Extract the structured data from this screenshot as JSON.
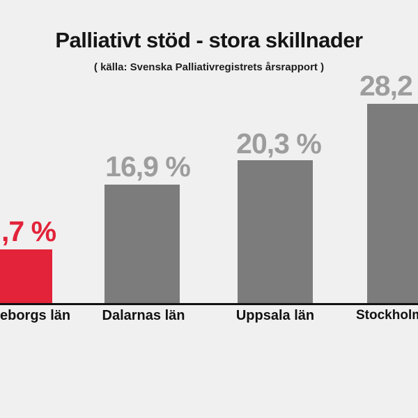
{
  "title": "Palliativt stöd - stora skillnader",
  "subtitle": "( källa: Svenska Palliativregistrets årsrapport )",
  "colors": {
    "background": "#f0f0f0",
    "bar_gray": "#7c7c7c",
    "bar_red": "#e22339",
    "value_label_gray": "#9d9d9d",
    "category_label": "#111111",
    "baseline": "#111111"
  },
  "chart_data": {
    "type": "bar",
    "title": "Palliativt stöd - stora skillnader",
    "subtitle": "( källa: Svenska Palliativregistrets årsrapport )",
    "categories": [
      "eborgs län",
      "Dalarnas län",
      "Uppsala län",
      "Stockholm"
    ],
    "values": [
      7.7,
      16.9,
      20.3,
      28.2
    ],
    "value_labels": [
      ",7 %",
      "16,9 %",
      "20,3 %",
      "28,2"
    ],
    "bar_colors": [
      "#e22339",
      "#7c7c7c",
      "#7c7c7c",
      "#7c7c7c"
    ],
    "ylim": [
      0,
      30
    ],
    "grid": false,
    "legend": false,
    "note": "leftmost and rightmost bars are cropped by the image edges"
  },
  "bars": [
    {
      "value_label": ",7 %",
      "category": "eborgs län"
    },
    {
      "value_label": "16,9 %",
      "category": "Dalarnas län"
    },
    {
      "value_label": "20,3 %",
      "category": "Uppsala län"
    },
    {
      "value_label": "28,2",
      "category": "Stockholm"
    }
  ]
}
